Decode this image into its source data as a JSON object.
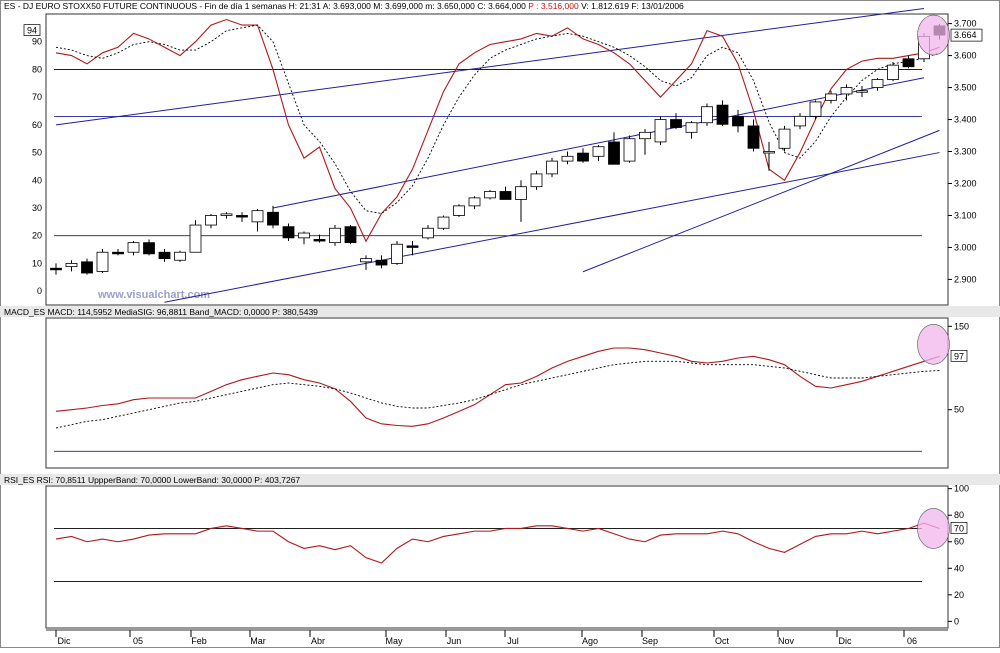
{
  "header": {
    "main": "ES - DJ EURO STOXX50 FUTURE CONTINUOUS - Fin de día 1 semanas H: 21:31  A: 3.693,000  M: 3.699,000  m: 3.650,000  C: 3.664,000",
    "p": "P : 3.516,000",
    "rest": "V: 1.812.619  F: 13/01/2006"
  },
  "watermark": "www.visualchart.com",
  "colors": {
    "candle_up": "#ffffff",
    "candle_down": "#000000",
    "channel": "#1f1f9e",
    "indicator_red": "#b01818",
    "signal_black": "#000000",
    "highlight": "#f2b6ee"
  },
  "x_labels": [
    "Dic",
    "05",
    "Feb",
    "Mar",
    "Abr",
    "May",
    "Jun",
    "Jul",
    "Ago",
    "Sep",
    "Oct",
    "Nov",
    "Dic",
    "06"
  ],
  "price_panel": {
    "left_scale": {
      "ticks": [
        0,
        10,
        20,
        30,
        40,
        50,
        60,
        70,
        80,
        90
      ],
      "current": "94"
    },
    "right_scale": {
      "ticks": [
        "2.900",
        "3.000",
        "3.100",
        "3.200",
        "3.300",
        "3.400",
        "3.500",
        "3.600",
        "3.700"
      ],
      "current": "3.664"
    }
  },
  "macd_panel": {
    "header": "MACD_ES  MACD: 114,5952  MediaSIG: 96,8811  Band_MACD: 0,0000  P: 380,5439",
    "ticks": [
      "150",
      "50"
    ],
    "current": "97"
  },
  "rsi_panel": {
    "header": "RSI_ES  RSI: 70,8511  UppperBand: 70,0000  LowerBand: 30,0000  P: 403,7267",
    "ticks": [
      "100",
      "80",
      "60",
      "40",
      "20",
      "0"
    ],
    "current": "70"
  },
  "chart_data": {
    "type": "candlestick",
    "timeframe": "weekly",
    "months": [
      "Dic",
      "05",
      "Feb",
      "Mar",
      "Abr",
      "May",
      "Jun",
      "Jul",
      "Ago",
      "Sep",
      "Oct",
      "Nov",
      "Dic",
      "06"
    ],
    "candles": [
      {
        "o": 2935,
        "h": 2950,
        "l": 2915,
        "c": 2930
      },
      {
        "o": 2940,
        "h": 2960,
        "l": 2925,
        "c": 2950
      },
      {
        "o": 2955,
        "h": 2965,
        "l": 2915,
        "c": 2920
      },
      {
        "o": 2925,
        "h": 2995,
        "l": 2920,
        "c": 2985
      },
      {
        "o": 2985,
        "h": 2995,
        "l": 2975,
        "c": 2980
      },
      {
        "o": 2985,
        "h": 3020,
        "l": 2975,
        "c": 3015
      },
      {
        "o": 3015,
        "h": 3025,
        "l": 2975,
        "c": 2980
      },
      {
        "o": 2985,
        "h": 2995,
        "l": 2955,
        "c": 2965
      },
      {
        "o": 2960,
        "h": 2990,
        "l": 2955,
        "c": 2985
      },
      {
        "o": 2985,
        "h": 3085,
        "l": 2985,
        "c": 3070
      },
      {
        "o": 3070,
        "h": 3105,
        "l": 3060,
        "c": 3100
      },
      {
        "o": 3100,
        "h": 3110,
        "l": 3090,
        "c": 3105
      },
      {
        "o": 3100,
        "h": 3110,
        "l": 3080,
        "c": 3095
      },
      {
        "o": 3080,
        "h": 3120,
        "l": 3050,
        "c": 3115
      },
      {
        "o": 3110,
        "h": 3130,
        "l": 3060,
        "c": 3070
      },
      {
        "o": 3065,
        "h": 3075,
        "l": 3020,
        "c": 3030
      },
      {
        "o": 3030,
        "h": 3050,
        "l": 3010,
        "c": 3045
      },
      {
        "o": 3025,
        "h": 3040,
        "l": 3015,
        "c": 3020
      },
      {
        "o": 3015,
        "h": 3070,
        "l": 3005,
        "c": 3060
      },
      {
        "o": 3065,
        "h": 3070,
        "l": 3010,
        "c": 3015
      },
      {
        "o": 2955,
        "h": 2975,
        "l": 2930,
        "c": 2965
      },
      {
        "o": 2960,
        "h": 2975,
        "l": 2935,
        "c": 2945
      },
      {
        "o": 2950,
        "h": 3020,
        "l": 2945,
        "c": 3010
      },
      {
        "o": 3005,
        "h": 3020,
        "l": 2975,
        "c": 3000
      },
      {
        "o": 3030,
        "h": 3070,
        "l": 3025,
        "c": 3060
      },
      {
        "o": 3060,
        "h": 3100,
        "l": 3055,
        "c": 3095
      },
      {
        "o": 3100,
        "h": 3135,
        "l": 3095,
        "c": 3130
      },
      {
        "o": 3130,
        "h": 3160,
        "l": 3120,
        "c": 3155
      },
      {
        "o": 3155,
        "h": 3180,
        "l": 3150,
        "c": 3175
      },
      {
        "o": 3175,
        "h": 3190,
        "l": 3150,
        "c": 3150
      },
      {
        "o": 3150,
        "h": 3210,
        "l": 3080,
        "c": 3190
      },
      {
        "o": 3190,
        "h": 3240,
        "l": 3180,
        "c": 3230
      },
      {
        "o": 3230,
        "h": 3280,
        "l": 3220,
        "c": 3270
      },
      {
        "o": 3270,
        "h": 3300,
        "l": 3260,
        "c": 3285
      },
      {
        "o": 3295,
        "h": 3310,
        "l": 3265,
        "c": 3270
      },
      {
        "o": 3285,
        "h": 3320,
        "l": 3270,
        "c": 3315
      },
      {
        "o": 3330,
        "h": 3360,
        "l": 3260,
        "c": 3260
      },
      {
        "o": 3270,
        "h": 3350,
        "l": 3265,
        "c": 3340
      },
      {
        "o": 3340,
        "h": 3370,
        "l": 3290,
        "c": 3360
      },
      {
        "o": 3330,
        "h": 3410,
        "l": 3320,
        "c": 3400
      },
      {
        "o": 3400,
        "h": 3420,
        "l": 3370,
        "c": 3375
      },
      {
        "o": 3360,
        "h": 3395,
        "l": 3340,
        "c": 3390
      },
      {
        "o": 3390,
        "h": 3450,
        "l": 3380,
        "c": 3440
      },
      {
        "o": 3445,
        "h": 3460,
        "l": 3380,
        "c": 3385
      },
      {
        "o": 3410,
        "h": 3430,
        "l": 3360,
        "c": 3380
      },
      {
        "o": 3380,
        "h": 3400,
        "l": 3300,
        "c": 3310
      },
      {
        "o": 3300,
        "h": 3330,
        "l": 3240,
        "c": 3300
      },
      {
        "o": 3310,
        "h": 3380,
        "l": 3300,
        "c": 3370
      },
      {
        "o": 3380,
        "h": 3420,
        "l": 3370,
        "c": 3410
      },
      {
        "o": 3410,
        "h": 3460,
        "l": 3400,
        "c": 3455
      },
      {
        "o": 3460,
        "h": 3490,
        "l": 3450,
        "c": 3480
      },
      {
        "o": 3480,
        "h": 3510,
        "l": 3460,
        "c": 3500
      },
      {
        "o": 3490,
        "h": 3505,
        "l": 3470,
        "c": 3490
      },
      {
        "o": 3500,
        "h": 3530,
        "l": 3490,
        "c": 3525
      },
      {
        "o": 3525,
        "h": 3580,
        "l": 3520,
        "c": 3570
      },
      {
        "o": 3590,
        "h": 3600,
        "l": 3560,
        "c": 3565
      },
      {
        "o": 3590,
        "h": 3670,
        "l": 3580,
        "c": 3660
      },
      {
        "o": 3693,
        "h": 3699,
        "l": 3650,
        "c": 3664
      }
    ],
    "ylim": [
      2820,
      3730
    ],
    "left_axis_range": [
      -5,
      100
    ],
    "horizontal_lines_left_scale": [
      80,
      63,
      20
    ],
    "osc_line": [
      86,
      85,
      82,
      86,
      88,
      93,
      91,
      88,
      85,
      90,
      96,
      98,
      96,
      96,
      80,
      60,
      48,
      52,
      37,
      30,
      18,
      28,
      34,
      44,
      58,
      72,
      82,
      86,
      89,
      90,
      91,
      93,
      92,
      95,
      91,
      89,
      86,
      82,
      76,
      70,
      76,
      82,
      94,
      92,
      82,
      65,
      44,
      40,
      50,
      62,
      73,
      80,
      83,
      84,
      84,
      85,
      86,
      88
    ],
    "osc_signal": [
      88,
      87,
      85,
      84,
      86,
      89,
      90,
      89,
      87,
      87,
      90,
      94,
      95,
      96,
      90,
      75,
      60,
      54,
      46,
      36,
      29,
      28,
      32,
      38,
      48,
      60,
      70,
      78,
      84,
      87,
      89,
      91,
      92,
      93,
      92,
      90,
      88,
      85,
      81,
      76,
      74,
      77,
      85,
      88,
      86,
      76,
      61,
      50,
      48,
      54,
      63,
      70,
      76,
      80,
      82,
      83,
      84,
      86
    ],
    "channel_lines": [
      {
        "x1": 0,
        "y1": 60,
        "x2": 56,
        "y2": 102
      },
      {
        "x1": 14,
        "y1": 30,
        "x2": 56,
        "y2": 77
      },
      {
        "x1": 34,
        "y1": 7,
        "x2": 57,
        "y2": 58
      },
      {
        "x1": 7,
        "y1": -4,
        "x2": 57,
        "y2": 50
      }
    ],
    "macd": {
      "ylim": [
        -20,
        160
      ],
      "line": [
        48,
        50,
        52,
        55,
        57,
        62,
        64,
        64,
        64,
        64,
        72,
        80,
        86,
        90,
        94,
        92,
        86,
        82,
        75,
        60,
        40,
        33,
        31,
        30,
        33,
        40,
        48,
        56,
        68,
        80,
        82,
        90,
        100,
        108,
        114,
        120,
        124,
        124,
        122,
        118,
        114,
        108,
        106,
        108,
        112,
        114,
        110,
        104,
        90,
        78,
        76,
        80,
        84,
        90,
        96,
        102,
        108,
        114
      ],
      "signal": [
        28,
        32,
        36,
        38,
        42,
        46,
        50,
        54,
        58,
        60,
        64,
        68,
        72,
        76,
        80,
        82,
        80,
        78,
        75,
        70,
        64,
        58,
        54,
        52,
        52,
        55,
        58,
        62,
        68,
        74,
        80,
        84,
        88,
        92,
        96,
        100,
        104,
        106,
        108,
        108,
        108,
        106,
        104,
        104,
        104,
        104,
        102,
        100,
        96,
        92,
        88,
        88,
        88,
        90,
        92,
        94,
        96,
        97
      ],
      "zero_line": 0
    },
    "rsi": {
      "ylim": [
        -5,
        102
      ],
      "line": [
        62,
        64,
        60,
        62,
        60,
        62,
        65,
        66,
        66,
        66,
        70,
        72,
        70,
        68,
        68,
        60,
        55,
        57,
        54,
        57,
        48,
        44,
        55,
        62,
        60,
        64,
        66,
        68,
        68,
        70,
        70,
        72,
        72,
        70,
        68,
        70,
        66,
        62,
        60,
        65,
        66,
        66,
        66,
        68,
        66,
        60,
        55,
        52,
        58,
        64,
        66,
        66,
        68,
        66,
        68,
        70,
        74,
        70
      ],
      "upper_band": 70,
      "lower_band": 30
    }
  }
}
